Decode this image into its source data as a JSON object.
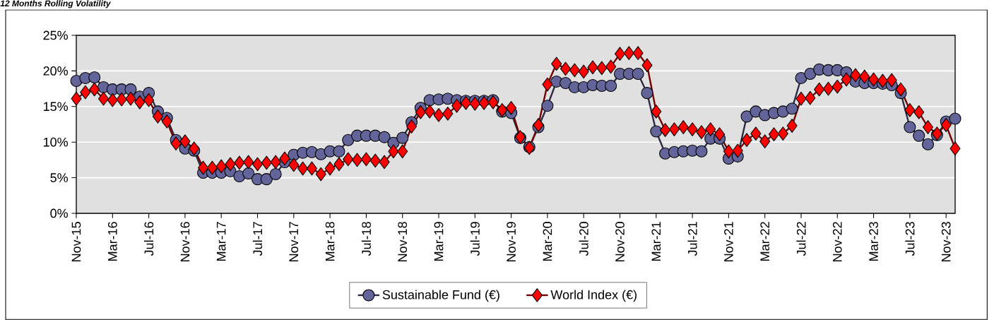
{
  "chart_data": {
    "type": "line",
    "title": "12 Months Rolling Volatility",
    "x": [
      "2015-11",
      "2015-12",
      "2016-01",
      "2016-02",
      "2016-03",
      "2016-04",
      "2016-05",
      "2016-06",
      "2016-07",
      "2016-08",
      "2016-09",
      "2016-10",
      "2016-11",
      "2016-12",
      "2017-01",
      "2017-02",
      "2017-03",
      "2017-04",
      "2017-05",
      "2017-06",
      "2017-07",
      "2017-08",
      "2017-09",
      "2017-10",
      "2017-11",
      "2017-12",
      "2018-01",
      "2018-02",
      "2018-03",
      "2018-04",
      "2018-05",
      "2018-06",
      "2018-07",
      "2018-08",
      "2018-09",
      "2018-10",
      "2018-11",
      "2018-12",
      "2019-01",
      "2019-02",
      "2019-03",
      "2019-04",
      "2019-05",
      "2019-06",
      "2019-07",
      "2019-08",
      "2019-09",
      "2019-10",
      "2019-11",
      "2019-12",
      "2020-01",
      "2020-02",
      "2020-03",
      "2020-04",
      "2020-05",
      "2020-06",
      "2020-07",
      "2020-08",
      "2020-09",
      "2020-10",
      "2020-11",
      "2020-12",
      "2021-01",
      "2021-02",
      "2021-03",
      "2021-04",
      "2021-05",
      "2021-06",
      "2021-07",
      "2021-08",
      "2021-09",
      "2021-10",
      "2021-11",
      "2021-12",
      "2022-01",
      "2022-02",
      "2022-03",
      "2022-04",
      "2022-05",
      "2022-06",
      "2022-07",
      "2022-08",
      "2022-09",
      "2022-10",
      "2022-11",
      "2022-12",
      "2023-01",
      "2023-02",
      "2023-03",
      "2023-04",
      "2023-05",
      "2023-06",
      "2023-07",
      "2023-08",
      "2023-09",
      "2023-10",
      "2023-11",
      "2023-12"
    ],
    "series": [
      {
        "name": "Sustainable Fund (€)",
        "color": "#62649a",
        "marker": "circle",
        "values": [
          18.6,
          19.0,
          19.1,
          17.7,
          17.4,
          17.4,
          17.4,
          16.4,
          16.9,
          14.3,
          13.4,
          10.3,
          9.1,
          8.8,
          5.7,
          5.7,
          5.7,
          5.9,
          5.2,
          5.6,
          4.8,
          4.8,
          5.5,
          7.2,
          8.2,
          8.5,
          8.6,
          8.3,
          8.7,
          8.7,
          10.3,
          10.9,
          10.9,
          10.9,
          10.7,
          9.9,
          10.6,
          12.8,
          14.8,
          15.9,
          16.0,
          16.1,
          15.9,
          15.8,
          15.8,
          15.8,
          15.9,
          14.3,
          14.1,
          10.6,
          9.3,
          12.1,
          15.1,
          18.5,
          18.3,
          17.7,
          17.7,
          18.0,
          17.9,
          17.9,
          19.6,
          19.6,
          19.6,
          16.9,
          11.5,
          8.4,
          8.6,
          8.7,
          8.8,
          8.7,
          10.5,
          10.5,
          7.7,
          8.0,
          13.6,
          14.3,
          13.8,
          14.1,
          14.3,
          14.7,
          19.0,
          19.6,
          20.2,
          20.1,
          20.1,
          19.8,
          18.5,
          18.3,
          18.3,
          18.2,
          18.0,
          16.9,
          12.1,
          10.9,
          9.7,
          11.0,
          12.9,
          13.3
        ]
      },
      {
        "name": "World Index (€)",
        "color": "#ff0000",
        "marker": "diamond",
        "values": [
          16.1,
          17.0,
          17.4,
          16.1,
          15.9,
          16.0,
          16.1,
          15.6,
          15.9,
          13.6,
          12.9,
          9.8,
          10.1,
          9.1,
          6.4,
          6.4,
          6.6,
          6.9,
          7.1,
          7.2,
          6.9,
          7.1,
          7.2,
          7.7,
          6.8,
          6.3,
          6.3,
          5.5,
          6.3,
          6.9,
          7.6,
          7.5,
          7.6,
          7.4,
          7.2,
          8.7,
          8.7,
          12.2,
          14.2,
          14.3,
          13.8,
          14.0,
          15.1,
          15.5,
          15.4,
          15.5,
          15.6,
          14.5,
          14.8,
          10.7,
          9.2,
          12.4,
          18.1,
          21.0,
          20.3,
          20.1,
          19.9,
          20.5,
          20.4,
          20.6,
          22.4,
          22.5,
          22.5,
          20.8,
          14.3,
          11.7,
          11.8,
          12.1,
          11.8,
          11.4,
          11.8,
          11.1,
          8.7,
          8.8,
          10.3,
          11.2,
          10.1,
          11.1,
          11.2,
          12.3,
          16.1,
          16.2,
          17.4,
          17.5,
          17.8,
          18.8,
          19.4,
          19.2,
          18.8,
          18.6,
          18.7,
          17.4,
          14.5,
          14.2,
          12.1,
          11.2,
          12.4,
          9.1
        ]
      }
    ],
    "xlim": [
      "2015-11",
      "2023-12"
    ],
    "xticks": [
      {
        "value": "2015-11",
        "label": "Nov-15"
      },
      {
        "value": "2016-03",
        "label": "Mar-16"
      },
      {
        "value": "2016-07",
        "label": "Jul-16"
      },
      {
        "value": "2016-11",
        "label": "Nov-16"
      },
      {
        "value": "2017-03",
        "label": "Mar-17"
      },
      {
        "value": "2017-07",
        "label": "Jul-17"
      },
      {
        "value": "2017-11",
        "label": "Nov-17"
      },
      {
        "value": "2018-03",
        "label": "Mar-18"
      },
      {
        "value": "2018-07",
        "label": "Jul-18"
      },
      {
        "value": "2018-11",
        "label": "Nov-18"
      },
      {
        "value": "2019-03",
        "label": "Mar-19"
      },
      {
        "value": "2019-07",
        "label": "Jul-19"
      },
      {
        "value": "2019-11",
        "label": "Nov-19"
      },
      {
        "value": "2020-03",
        "label": "Mar-20"
      },
      {
        "value": "2020-07",
        "label": "Jul-20"
      },
      {
        "value": "2020-11",
        "label": "Nov-20"
      },
      {
        "value": "2021-03",
        "label": "Mar-21"
      },
      {
        "value": "2021-07",
        "label": "Jul-21"
      },
      {
        "value": "2021-11",
        "label": "Nov-21"
      },
      {
        "value": "2022-03",
        "label": "Mar-22"
      },
      {
        "value": "2022-07",
        "label": "Jul-22"
      },
      {
        "value": "2022-11",
        "label": "Nov-22"
      },
      {
        "value": "2023-03",
        "label": "Mar-23"
      },
      {
        "value": "2023-07",
        "label": "Jul-23"
      },
      {
        "value": "2023-11",
        "label": "Nov-23"
      }
    ],
    "ylim": [
      0,
      25
    ],
    "yticks": [
      {
        "value": 0,
        "label": "0%"
      },
      {
        "value": 5,
        "label": "5%"
      },
      {
        "value": 10,
        "label": "10%"
      },
      {
        "value": 15,
        "label": "15%"
      },
      {
        "value": 20,
        "label": "20%"
      },
      {
        "value": 25,
        "label": "25%"
      }
    ],
    "grid": "y",
    "legend": "bottom",
    "line_style": "solid"
  }
}
